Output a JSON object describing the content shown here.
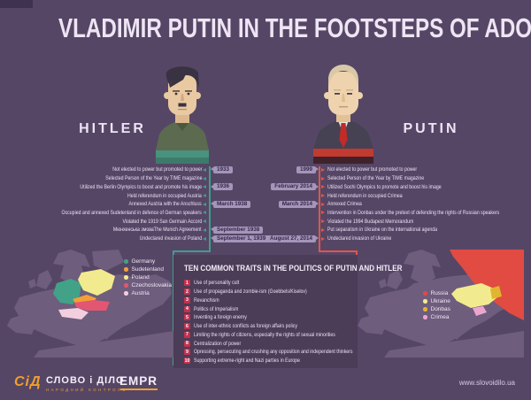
{
  "title": "VLADIMIR PUTIN IN THE FOOTSTEPS OF ADOLF HITLER",
  "hitler": {
    "name": "HITLER",
    "events": [
      {
        "text": "Not elected to power but promoted to power",
        "date": "1933"
      },
      {
        "text": "Selected Person of the Year by TIME magazine",
        "date": ""
      },
      {
        "text": "Utilized the Berlin Olympics to boost and promote his image",
        "date": "1936"
      },
      {
        "text": "Held referendum in occupied Austria",
        "date": ""
      },
      {
        "text": "Annexed Austria with the Anschluss",
        "date": "March 1938"
      },
      {
        "text": "Occupied and annexed Sudetenland in defence of German speakers",
        "date": ""
      },
      {
        "text": "Violated the 1919 San Germain Accord",
        "date": ""
      },
      {
        "text": "Мюнхенська змоваThe Munich Agreement",
        "date": "September 1938"
      },
      {
        "text": "Undeclared invasion of Poland",
        "date": "September 1, 1939"
      }
    ]
  },
  "putin": {
    "name": "PUTIN",
    "events": [
      {
        "text": "Not elected to power but promoted to power",
        "date": "1999"
      },
      {
        "text": "Selected Person of the Year by TIME magazine",
        "date": ""
      },
      {
        "text": "Utilized Sochi Olympics to promote and boost his image",
        "date": "February 2014"
      },
      {
        "text": "Held referendum in occupied Crimea",
        "date": ""
      },
      {
        "text": "Annexed Crimea",
        "date": "March 2014"
      },
      {
        "text": "Intervention in Donbas under the pretext of defending the rights of Russian speakers",
        "date": ""
      },
      {
        "text": "Violated the 1994 Budapest Memorandum",
        "date": ""
      },
      {
        "text": "Put separatism in Ukraine on the international agenda",
        "date": ""
      },
      {
        "text": "Undeclared invasion of Ukraine",
        "date": "August 27, 2014"
      }
    ]
  },
  "traits": {
    "title": "TEN COMMON TRAITS IN THE POLITICS OF PUTIN AND HITLER",
    "items": [
      "Use of personality cult",
      "Use of propaganda and zombie-ism (Goebbels/Kiselov)",
      "Revanchism",
      "Politics of Imperialism",
      "Inventing a foreign enemy",
      "Use of inter-ethnic conflicts as foreign affairs policy",
      "Limiting the rights of citizens, especially the rights of sexual minorities",
      "Centralization of power",
      "Opressing, persecuting and crushing any opposition and independent thinkers",
      "Supporting extreme-right and Nazi parties in Europe"
    ]
  },
  "map_left": {
    "legend": [
      {
        "label": "Germany",
        "color": "#41a287"
      },
      {
        "label": "Sudetenland",
        "color": "#f29f38"
      },
      {
        "label": "Poland",
        "color": "#f2ea8e"
      },
      {
        "label": "Czechoslovakia",
        "color": "#e25672"
      },
      {
        "label": "Austria",
        "color": "#f3cede"
      }
    ]
  },
  "map_right": {
    "legend": [
      {
        "label": "Russia",
        "color": "#e14b42"
      },
      {
        "label": "Ukraine",
        "color": "#f2ea8e"
      },
      {
        "label": "Donbas",
        "color": "#e0b52f"
      },
      {
        "label": "Crimea",
        "color": "#eba6cf"
      }
    ]
  },
  "footer": {
    "brand_mark": "СіД",
    "brand": "СЛОВО і ДІЛО",
    "brand_sub": "НАРОДНИЙ КОНТРОЛЬ",
    "empr": "EMPR",
    "website": "www.slovoidilo.ua"
  },
  "colors": {
    "background": "#564666",
    "panel": "#4b3c57",
    "notch": "#3e3250",
    "accent_hitler": "#3f9e8c",
    "accent_putin": "#e0564a",
    "pill_bg": "#a495b9",
    "pill_text": "#33274a",
    "text_light": "#e9e0f2",
    "number_badge": "#c5304e",
    "land": "#6e5d7d",
    "germany": "#41a287",
    "sudetenland": "#f29f38",
    "poland": "#f2ea8e",
    "czechoslovakia": "#e25672",
    "austria": "#f3cede",
    "russia": "#e14b42",
    "ukraine": "#f2ea8e",
    "donbas": "#e0b52f",
    "crimea": "#eba6cf",
    "logo_orange": "#f0a02c"
  }
}
